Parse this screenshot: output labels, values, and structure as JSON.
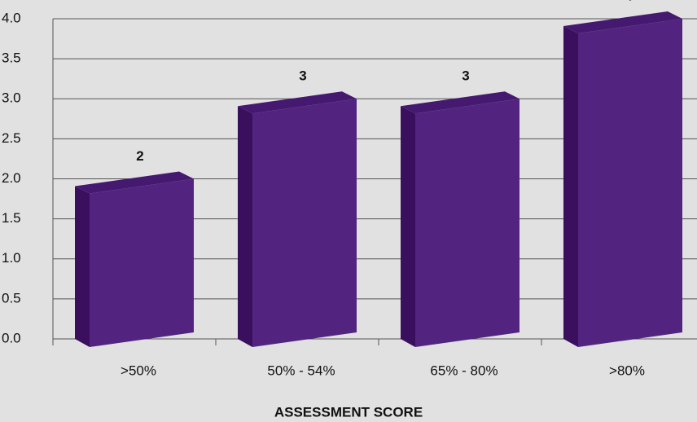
{
  "chart_data": {
    "type": "bar3d",
    "x_label": "ASSESSMENT SCORE",
    "categories": [
      ">50%",
      "50% - 54%",
      "65% - 80%",
      ">80%"
    ],
    "values": [
      2,
      3,
      3,
      4
    ],
    "color": "#52247f",
    "ylim": [
      0,
      4
    ],
    "yticks": [
      {
        "value": 0,
        "label": "0.0"
      },
      {
        "value": 0.5,
        "label": "0.5"
      },
      {
        "value": 1,
        "label": "1.0"
      },
      {
        "value": 1.5,
        "label": "1.5"
      },
      {
        "value": 2,
        "label": "2.0"
      },
      {
        "value": 2.5,
        "label": "2.5"
      },
      {
        "value": 3,
        "label": "3.0"
      },
      {
        "value": 3.5,
        "label": "3.5"
      },
      {
        "value": 4,
        "label": "4.0"
      }
    ],
    "grid": true
  }
}
